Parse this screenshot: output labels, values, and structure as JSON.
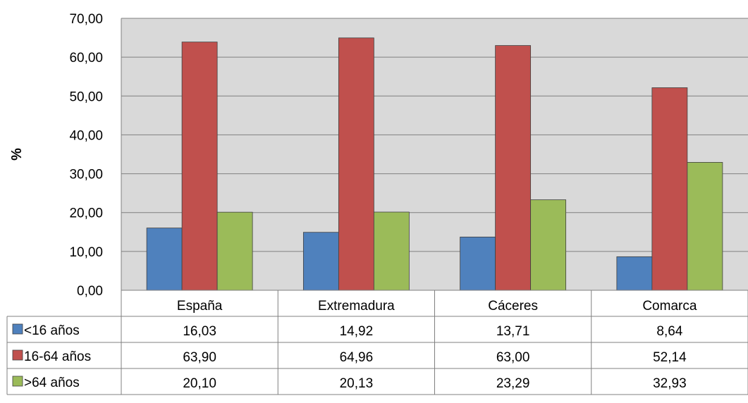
{
  "chart_data": {
    "type": "bar",
    "title": "",
    "xlabel": "",
    "ylabel": "%",
    "ylim": [
      0,
      70
    ],
    "yticks": [
      "0,00",
      "10,00",
      "20,00",
      "30,00",
      "40,00",
      "50,00",
      "60,00",
      "70,00"
    ],
    "ytick_values": [
      0,
      10,
      20,
      30,
      40,
      50,
      60,
      70
    ],
    "grid": true,
    "legend": "data-table",
    "categories": [
      "España",
      "Extremadura",
      "Cáceres",
      "Comarca"
    ],
    "series": [
      {
        "name": "<16 años",
        "color": "#4f81bd",
        "values": [
          16.03,
          14.92,
          13.71,
          8.64
        ],
        "labels": [
          "16,03",
          "14,92",
          "13,71",
          "8,64"
        ]
      },
      {
        "name": "16-64 años",
        "color": "#c0504d",
        "values": [
          63.9,
          64.96,
          63.0,
          52.14
        ],
        "labels": [
          "63,90",
          "64,96",
          "63,00",
          "52,14"
        ]
      },
      {
        "name": ">64 años",
        "color": "#9bbb59",
        "values": [
          20.1,
          20.13,
          23.29,
          32.93
        ],
        "labels": [
          "20,10",
          "20,13",
          "23,29",
          "32,93"
        ]
      }
    ]
  }
}
